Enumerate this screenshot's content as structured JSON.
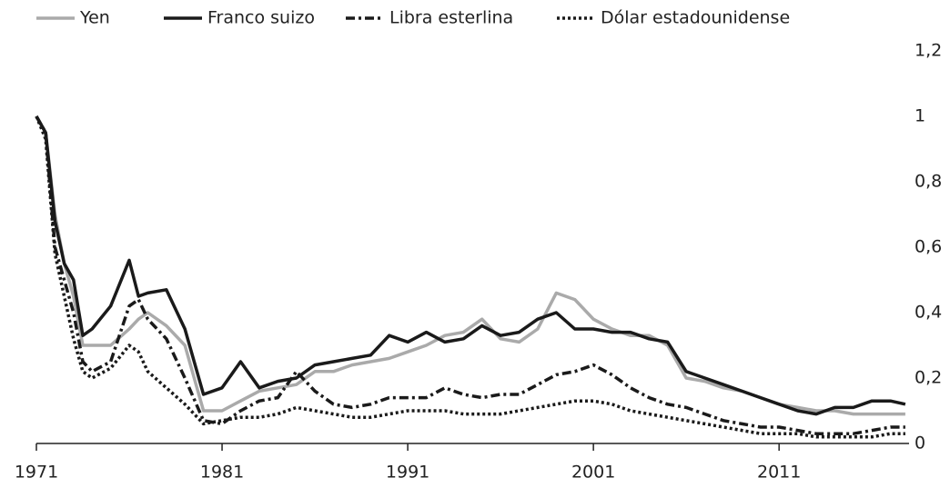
{
  "chart_data": {
    "type": "line",
    "x": [
      1971,
      1971.5,
      1972,
      1972.5,
      1973,
      1973.5,
      1974,
      1975,
      1976,
      1976.5,
      1977,
      1978,
      1979,
      1980,
      1981,
      1982,
      1983,
      1984,
      1985,
      1986,
      1987,
      1988,
      1989,
      1990,
      1991,
      1992,
      1993,
      1994,
      1995,
      1996,
      1997,
      1998,
      1999,
      2000,
      2001,
      2002,
      2003,
      2004,
      2005,
      2006,
      2007,
      2008,
      2009,
      2010,
      2011,
      2012,
      2013,
      2014,
      2015,
      2016,
      2017,
      2017.8
    ],
    "series": [
      {
        "name": "Yen",
        "color": "#aaaaaa",
        "line_style": "solid",
        "values": [
          1.0,
          0.95,
          0.7,
          0.55,
          0.45,
          0.3,
          0.3,
          0.3,
          0.35,
          0.38,
          0.4,
          0.36,
          0.3,
          0.1,
          0.1,
          0.13,
          0.16,
          0.17,
          0.18,
          0.22,
          0.22,
          0.24,
          0.25,
          0.26,
          0.28,
          0.3,
          0.33,
          0.34,
          0.38,
          0.32,
          0.31,
          0.35,
          0.46,
          0.44,
          0.38,
          0.35,
          0.33,
          0.33,
          0.3,
          0.2,
          0.19,
          0.17,
          0.16,
          0.14,
          0.12,
          0.11,
          0.1,
          0.1,
          0.09,
          0.09,
          0.09,
          0.09
        ]
      },
      {
        "name": "Franco suizo",
        "color": "#1a1a1a",
        "line_style": "solid",
        "values": [
          1.0,
          0.95,
          0.68,
          0.55,
          0.5,
          0.33,
          0.35,
          0.42,
          0.56,
          0.45,
          0.46,
          0.47,
          0.35,
          0.15,
          0.17,
          0.25,
          0.17,
          0.19,
          0.2,
          0.24,
          0.25,
          0.26,
          0.27,
          0.33,
          0.31,
          0.34,
          0.31,
          0.32,
          0.36,
          0.33,
          0.34,
          0.38,
          0.4,
          0.35,
          0.35,
          0.34,
          0.34,
          0.32,
          0.31,
          0.22,
          0.2,
          0.18,
          0.16,
          0.14,
          0.12,
          0.1,
          0.09,
          0.11,
          0.11,
          0.13,
          0.13,
          0.12
        ]
      },
      {
        "name": "Libra esterlina",
        "color": "#1a1a1a",
        "line_style": "dashdot",
        "values": [
          1.0,
          0.95,
          0.6,
          0.5,
          0.4,
          0.25,
          0.22,
          0.25,
          0.42,
          0.44,
          0.38,
          0.32,
          0.2,
          0.07,
          0.06,
          0.1,
          0.13,
          0.14,
          0.22,
          0.16,
          0.12,
          0.11,
          0.12,
          0.14,
          0.14,
          0.14,
          0.17,
          0.15,
          0.14,
          0.15,
          0.15,
          0.18,
          0.21,
          0.22,
          0.24,
          0.21,
          0.17,
          0.14,
          0.12,
          0.11,
          0.09,
          0.07,
          0.06,
          0.05,
          0.05,
          0.04,
          0.03,
          0.03,
          0.03,
          0.04,
          0.05,
          0.05
        ]
      },
      {
        "name": "Dólar estadounidense",
        "color": "#1a1a1a",
        "line_style": "dotted",
        "values": [
          1.0,
          0.93,
          0.58,
          0.45,
          0.32,
          0.22,
          0.2,
          0.23,
          0.3,
          0.28,
          0.22,
          0.17,
          0.12,
          0.06,
          0.07,
          0.08,
          0.08,
          0.09,
          0.11,
          0.1,
          0.09,
          0.08,
          0.08,
          0.09,
          0.1,
          0.1,
          0.1,
          0.09,
          0.09,
          0.09,
          0.1,
          0.11,
          0.12,
          0.13,
          0.13,
          0.12,
          0.1,
          0.09,
          0.08,
          0.07,
          0.06,
          0.05,
          0.04,
          0.03,
          0.03,
          0.03,
          0.02,
          0.02,
          0.02,
          0.02,
          0.03,
          0.03
        ]
      }
    ],
    "xlim": [
      1971,
      2018
    ],
    "xticks": [
      1971,
      1981,
      1991,
      2001,
      2011
    ],
    "ylim": [
      0,
      1.2
    ],
    "yticks": [
      0,
      {
        "value": 0.2,
        "label": "0,2"
      },
      {
        "value": 0.4,
        "label": "0,4"
      },
      {
        "value": 0.6,
        "label": "0,6"
      },
      {
        "value": 0.8,
        "label": "0,8"
      },
      1,
      {
        "value": 1.2,
        "label": "1,2"
      }
    ],
    "y_axis_side": "right",
    "grid": false,
    "legend": "top"
  }
}
